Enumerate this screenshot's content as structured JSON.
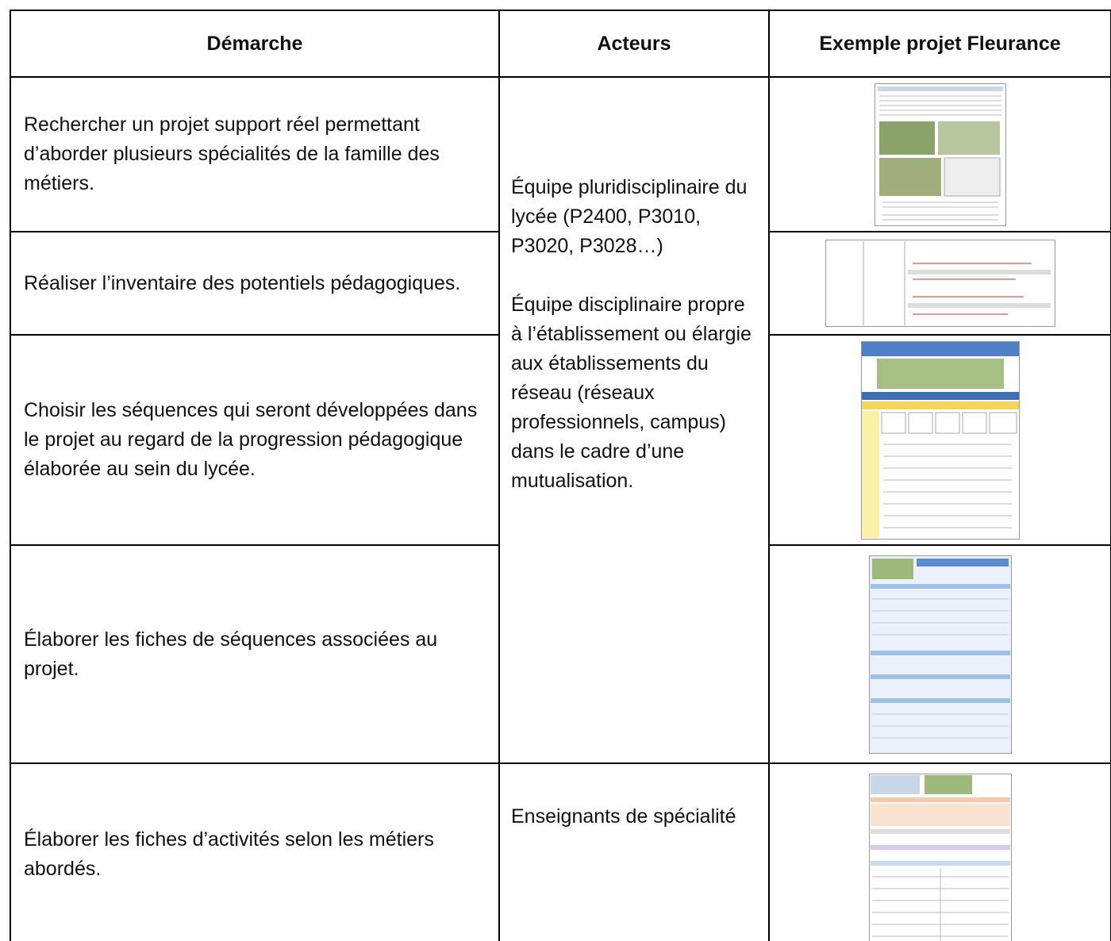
{
  "table": {
    "header": [
      "Démarche",
      "Acteurs",
      "Exemple projet Fleurance"
    ],
    "rows": [
      {
        "demarche": "Rechercher un projet support réel permettant d’aborder plusieurs spécialités de la famille des métiers.",
        "acteurs": [
          "Équipe pluridisciplinaire du lycée (P2400, P3010, P3020, P3028…)",
          "Équipe disciplinaire propre à l’établissement ou élargie aux établissements du réseau (réseaux professionnels, campus) dans le cadre d’une mutualisation."
        ]
      },
      {
        "demarche": "Réaliser l’inventaire des potentiels pédagogiques."
      },
      {
        "demarche": "Choisir les séquences qui seront développées dans le projet au regard de la progression pédagogique élaborée au sein du lycée."
      },
      {
        "demarche": "Élaborer les fiches de séquences associées au projet."
      },
      {
        "demarche": "Élaborer les fiches d’activités selon les métiers abordés.",
        "acteurs": [
          "Enseignants de spécialité"
        ]
      }
    ]
  }
}
